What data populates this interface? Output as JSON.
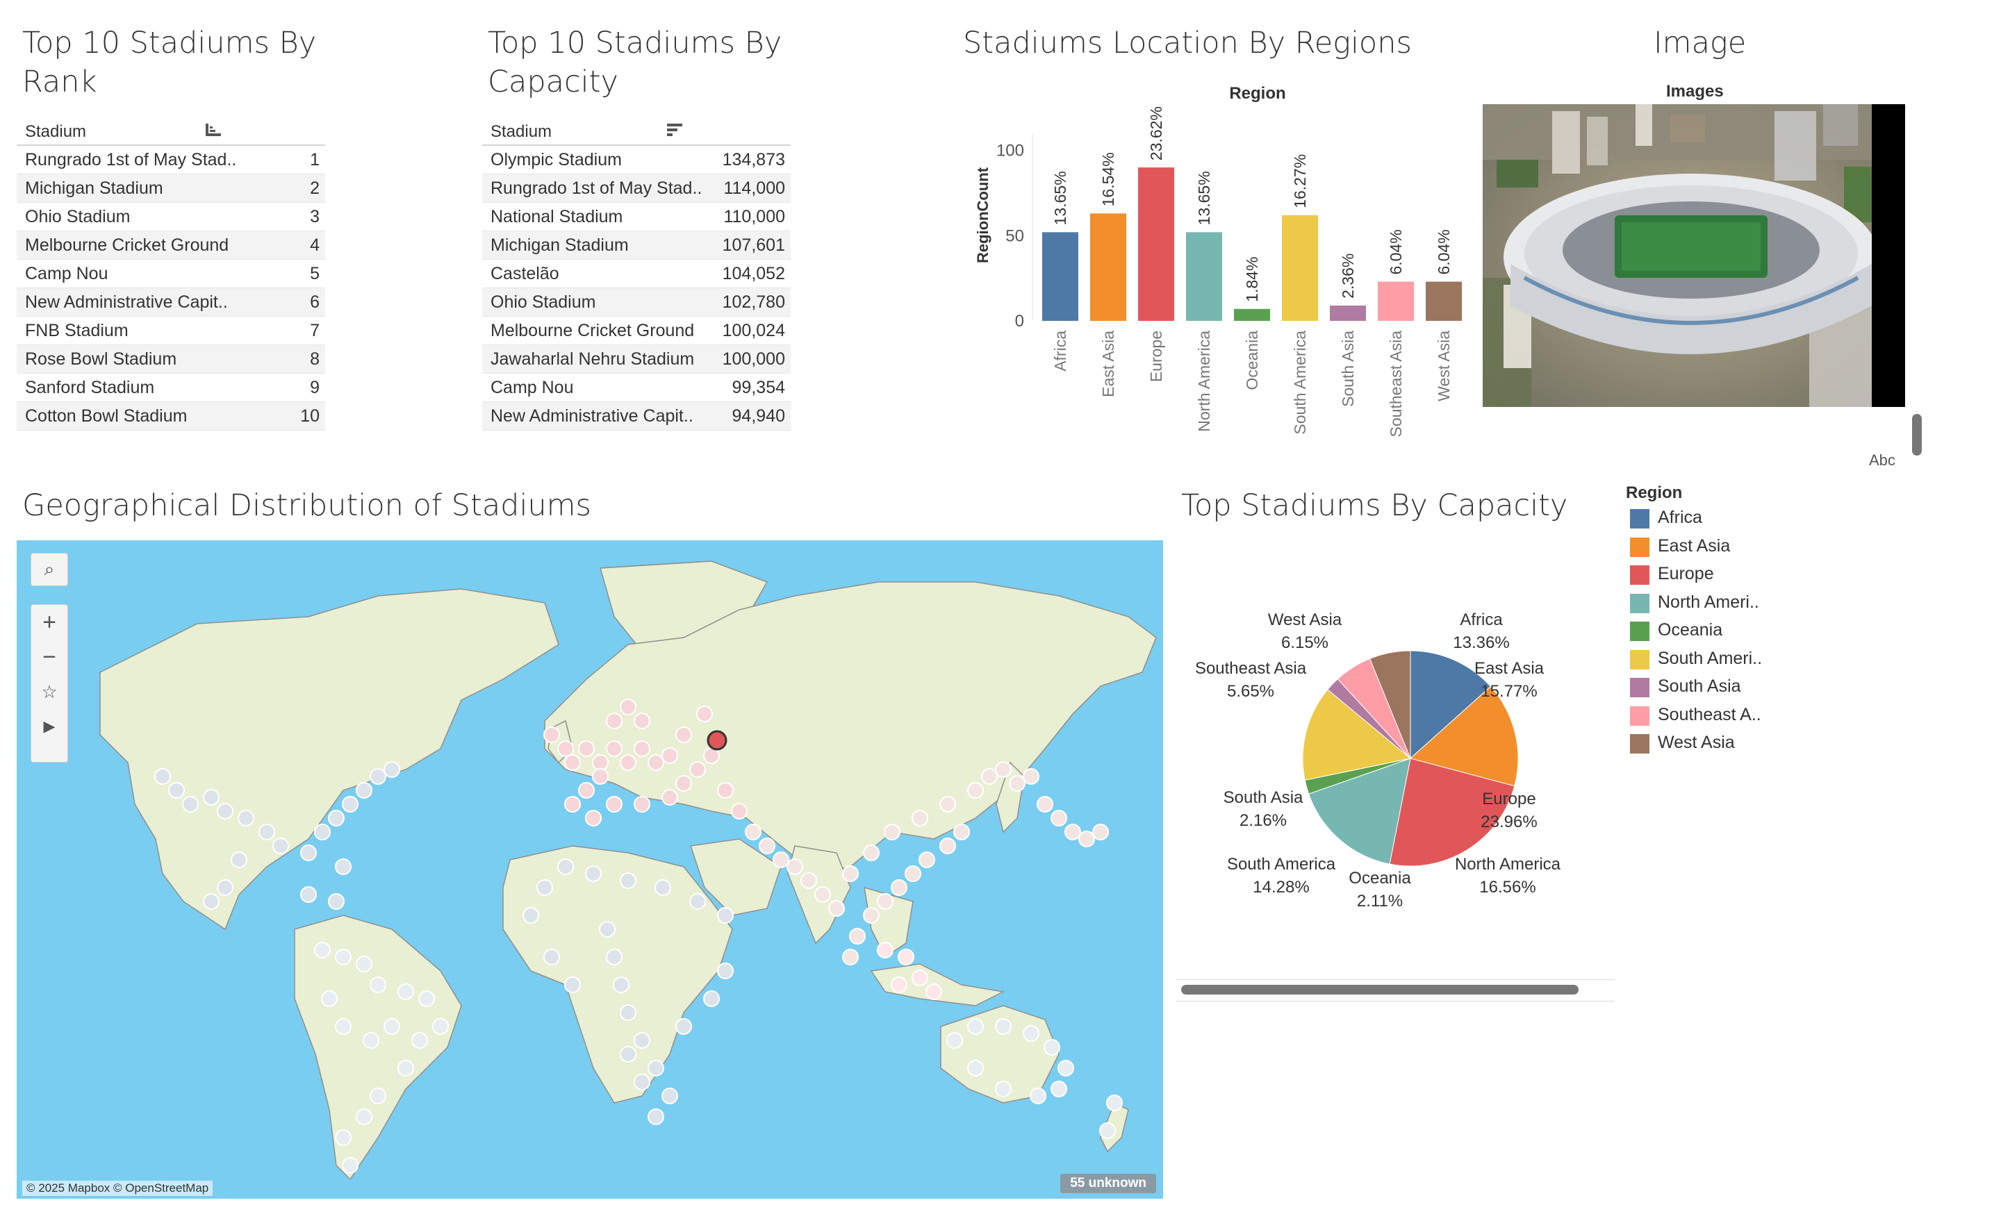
{
  "rank_table": {
    "title": "Top 10 Stadiums By Rank",
    "header": "Stadium",
    "rows": [
      {
        "name": "Rungrado 1st of May Stad..",
        "rank": "1"
      },
      {
        "name": "Michigan Stadium",
        "rank": "2"
      },
      {
        "name": "Ohio Stadium",
        "rank": "3"
      },
      {
        "name": "Melbourne Cricket Ground",
        "rank": "4"
      },
      {
        "name": "Camp Nou",
        "rank": "5"
      },
      {
        "name": "New Administrative Capit..",
        "rank": "6"
      },
      {
        "name": "FNB Stadium",
        "rank": "7"
      },
      {
        "name": "Rose Bowl Stadium",
        "rank": "8"
      },
      {
        "name": "Sanford Stadium",
        "rank": "9"
      },
      {
        "name": "Cotton Bowl Stadium",
        "rank": "10"
      }
    ]
  },
  "capacity_table": {
    "title": "Top 10 Stadiums By Capacity",
    "header": "Stadium",
    "rows": [
      {
        "name": "Olympic Stadium",
        "capacity": "134,873"
      },
      {
        "name": "Rungrado 1st of May Stad..",
        "capacity": "114,000"
      },
      {
        "name": "National Stadium",
        "capacity": "110,000"
      },
      {
        "name": "Michigan Stadium",
        "capacity": "107,601"
      },
      {
        "name": "Castelão",
        "capacity": "104,052"
      },
      {
        "name": "Ohio Stadium",
        "capacity": "102,780"
      },
      {
        "name": "Melbourne Cricket Ground",
        "capacity": "100,024"
      },
      {
        "name": "Jawaharlal Nehru Stadium",
        "capacity": "100,000"
      },
      {
        "name": "Camp Nou",
        "capacity": "99,354"
      },
      {
        "name": "New Administrative Capit..",
        "capacity": "94,940"
      }
    ]
  },
  "image_panel": {
    "title": "Image",
    "subtitle": "Images",
    "footer": "Abc"
  },
  "map_panel": {
    "title": "Geographical Distribution of Stadiums",
    "attribution": "© 2025 Mapbox © OpenStreetMap",
    "unknown_badge": "55 unknown",
    "controls": [
      "search-icon",
      "zoom-in-icon",
      "zoom-out-icon",
      "pin-clear-icon",
      "play-icon"
    ]
  },
  "colors": {
    "Africa": "#4e79a7",
    "East Asia": "#f28e2b",
    "Europe": "#e15759",
    "North America": "#76b7b2",
    "Oceania": "#59a14f",
    "South America": "#edc948",
    "South Asia": "#b07aa1",
    "Southeast Asia": "#ff9da7",
    "West Asia": "#9c755f",
    "ocean": "#79cdf1",
    "land": "#e9efd2"
  },
  "legend": {
    "title": "Region",
    "items": [
      "Africa",
      "East Asia",
      "Europe",
      "North Ameri..",
      "Oceania",
      "South Ameri..",
      "South Asia",
      "Southeast A..",
      "West Asia"
    ]
  },
  "chart_data": [
    {
      "type": "bar",
      "title": "Stadiums Location By Regions",
      "subtitle": "Region",
      "ylabel": "RegionCount",
      "categories": [
        "Africa",
        "East Asia",
        "Europe",
        "North America",
        "Oceania",
        "South America",
        "South Asia",
        "Southeast Asia",
        "West Asia"
      ],
      "values": [
        52,
        63,
        90,
        52,
        7,
        62,
        9,
        23,
        23
      ],
      "data_labels": [
        "13.65%",
        "16.54%",
        "23.62%",
        "13.65%",
        "1.84%",
        "16.27%",
        "2.36%",
        "6.04%",
        "6.04%"
      ],
      "yticks": [
        "0",
        "50",
        "100"
      ],
      "ylim": [
        0,
        110
      ]
    },
    {
      "type": "pie",
      "title": "Top Stadiums By Capacity",
      "slices": [
        {
          "label": "Africa",
          "pct": "13.36%",
          "value": 13.36
        },
        {
          "label": "East Asia",
          "pct": "15.77%",
          "value": 15.77
        },
        {
          "label": "Europe",
          "pct": "23.96%",
          "value": 23.96
        },
        {
          "label": "North America",
          "pct": "16.56%",
          "value": 16.56
        },
        {
          "label": "Oceania",
          "pct": "2.11%",
          "value": 2.11
        },
        {
          "label": "South America",
          "pct": "14.28%",
          "value": 14.28
        },
        {
          "label": "South Asia",
          "pct": "2.16%",
          "value": 2.16
        },
        {
          "label": "Southeast Asia",
          "pct": "5.65%",
          "value": 5.65
        },
        {
          "label": "West Asia",
          "pct": "6.15%",
          "value": 6.15
        }
      ]
    }
  ]
}
